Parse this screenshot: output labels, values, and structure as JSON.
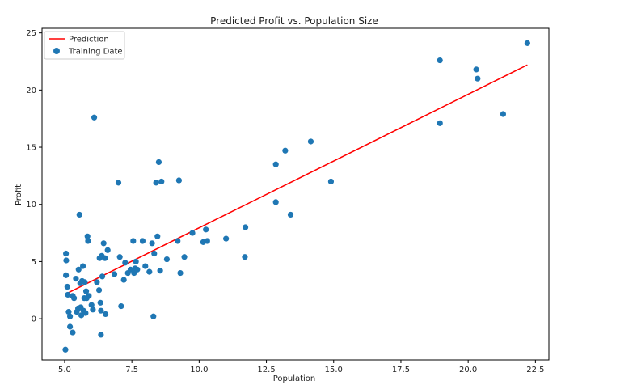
{
  "chart_data": {
    "type": "scatter",
    "title": "Predicted Profit vs. Population Size",
    "xlabel": "Population",
    "ylabel": "Profit",
    "xlim": [
      4.16,
      23.0
    ],
    "ylim": [
      -3.6,
      25.4
    ],
    "xticks": [
      5.0,
      7.5,
      10.0,
      12.5,
      15.0,
      17.5,
      20.0,
      22.5
    ],
    "xtick_labels": [
      "5.0",
      "7.5",
      "10.0",
      "12.5",
      "15.0",
      "17.5",
      "20.0",
      "22.5"
    ],
    "yticks": [
      0,
      5,
      10,
      15,
      20,
      25
    ],
    "ytick_labels": [
      "0",
      "5",
      "10",
      "15",
      "20",
      "25"
    ],
    "grid": false,
    "legend": {
      "placement": "top-left",
      "entries": [
        {
          "label": "Prediction",
          "kind": "line",
          "color": "#ff0000"
        },
        {
          "label": "Training Date",
          "kind": "marker",
          "color": "#1f77b4"
        }
      ]
    },
    "series": [
      {
        "name": "Prediction",
        "type": "line",
        "color": "#ff0000",
        "x": [
          5.03,
          22.2
        ],
        "y": [
          2.15,
          22.2
        ]
      },
      {
        "name": "Training Date",
        "type": "scatter",
        "color": "#1f77b4",
        "points": [
          [
            5.03,
            -2.7
          ],
          [
            5.05,
            5.7
          ],
          [
            5.06,
            5.1
          ],
          [
            5.05,
            3.8
          ],
          [
            5.1,
            2.8
          ],
          [
            5.12,
            2.1
          ],
          [
            5.15,
            0.6
          ],
          [
            5.2,
            0.2
          ],
          [
            5.2,
            -0.7
          ],
          [
            5.3,
            -1.2
          ],
          [
            5.3,
            2.0
          ],
          [
            5.35,
            1.8
          ],
          [
            5.42,
            3.5
          ],
          [
            5.45,
            0.6
          ],
          [
            5.5,
            0.9
          ],
          [
            5.52,
            4.3
          ],
          [
            5.55,
            9.1
          ],
          [
            5.58,
            3.1
          ],
          [
            5.6,
            1.0
          ],
          [
            5.62,
            0.3
          ],
          [
            5.65,
            3.3
          ],
          [
            5.68,
            4.6
          ],
          [
            5.7,
            0.7
          ],
          [
            5.73,
            1.8
          ],
          [
            5.75,
            3.2
          ],
          [
            5.78,
            0.5
          ],
          [
            5.8,
            2.4
          ],
          [
            5.82,
            1.8
          ],
          [
            5.85,
            7.2
          ],
          [
            5.87,
            6.8
          ],
          [
            5.9,
            2.0
          ],
          [
            6.0,
            1.2
          ],
          [
            6.05,
            0.8
          ],
          [
            6.1,
            17.6
          ],
          [
            6.2,
            3.2
          ],
          [
            6.28,
            2.5
          ],
          [
            6.3,
            5.3
          ],
          [
            6.33,
            1.4
          ],
          [
            6.35,
            0.7
          ],
          [
            6.35,
            -1.4
          ],
          [
            6.38,
            5.5
          ],
          [
            6.4,
            3.7
          ],
          [
            6.45,
            6.6
          ],
          [
            6.5,
            5.3
          ],
          [
            6.52,
            0.4
          ],
          [
            6.6,
            6.0
          ],
          [
            6.85,
            3.9
          ],
          [
            7.0,
            11.9
          ],
          [
            7.05,
            5.4
          ],
          [
            7.1,
            1.1
          ],
          [
            7.2,
            3.4
          ],
          [
            7.25,
            4.9
          ],
          [
            7.35,
            4.0
          ],
          [
            7.45,
            4.3
          ],
          [
            7.55,
            6.8
          ],
          [
            7.58,
            4.0
          ],
          [
            7.62,
            4.4
          ],
          [
            7.65,
            5.0
          ],
          [
            7.7,
            4.3
          ],
          [
            7.9,
            6.8
          ],
          [
            8.0,
            4.6
          ],
          [
            8.15,
            4.1
          ],
          [
            8.25,
            6.6
          ],
          [
            8.3,
            0.2
          ],
          [
            8.33,
            5.7
          ],
          [
            8.4,
            11.9
          ],
          [
            8.45,
            7.2
          ],
          [
            8.5,
            13.7
          ],
          [
            8.55,
            4.2
          ],
          [
            8.6,
            12.0
          ],
          [
            8.8,
            5.2
          ],
          [
            9.2,
            6.8
          ],
          [
            9.25,
            12.1
          ],
          [
            9.3,
            4.0
          ],
          [
            9.45,
            5.4
          ],
          [
            9.75,
            7.5
          ],
          [
            10.15,
            6.7
          ],
          [
            10.25,
            7.8
          ],
          [
            10.3,
            6.8
          ],
          [
            11.0,
            7.0
          ],
          [
            11.7,
            5.4
          ],
          [
            11.72,
            8.0
          ],
          [
            12.85,
            13.5
          ],
          [
            12.85,
            10.2
          ],
          [
            13.2,
            14.7
          ],
          [
            13.4,
            9.1
          ],
          [
            14.15,
            15.5
          ],
          [
            14.9,
            12.0
          ],
          [
            18.95,
            22.6
          ],
          [
            18.95,
            17.1
          ],
          [
            20.3,
            21.8
          ],
          [
            20.35,
            21.0
          ],
          [
            21.3,
            17.9
          ],
          [
            22.2,
            24.1
          ]
        ]
      }
    ]
  }
}
